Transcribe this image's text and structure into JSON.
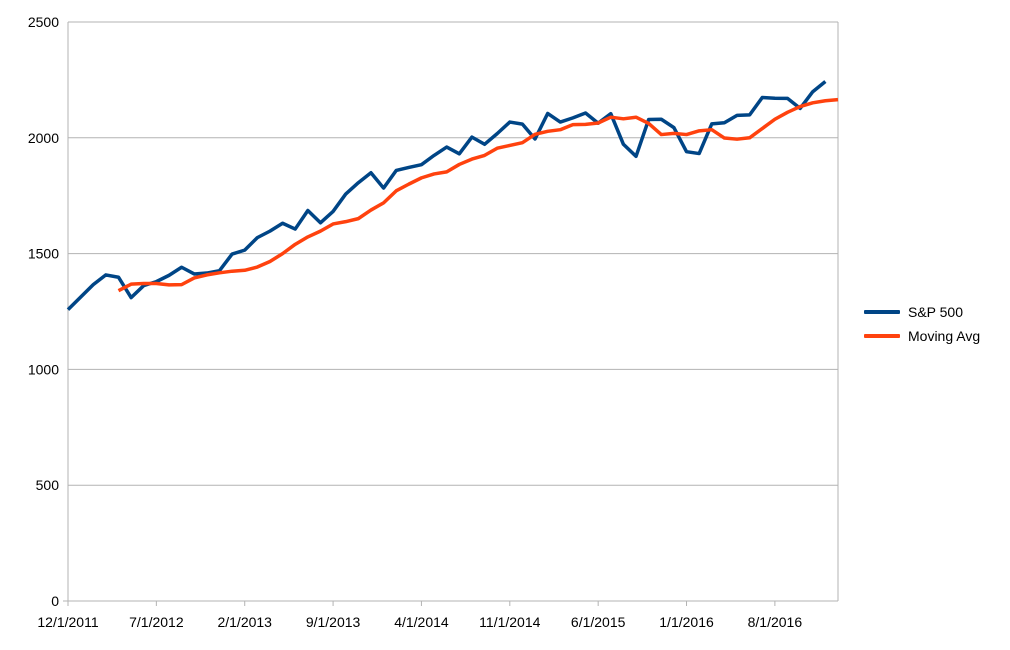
{
  "chart_data": {
    "type": "line",
    "title": "",
    "xlabel": "",
    "ylabel": "",
    "ylim": [
      0,
      2500
    ],
    "yticks": [
      0,
      500,
      1000,
      1500,
      2000,
      2500
    ],
    "yticklabels": [
      "0",
      "500",
      "1000",
      "1500",
      "2000",
      "2500"
    ],
    "xticklabels": [
      "12/1/2011",
      "7/1/2012",
      "2/1/2013",
      "9/1/2013",
      "4/1/2014",
      "11/1/2014",
      "6/1/2015",
      "1/1/2016",
      "8/1/2016"
    ],
    "xtick_months": [
      0,
      7,
      14,
      21,
      28,
      35,
      42,
      49,
      56
    ],
    "x_month_range": [
      0,
      61
    ],
    "grid": "horizontal",
    "legend_position": "right",
    "series": [
      {
        "name": "S&P 500",
        "color": "#004586",
        "start_month": 0,
        "values": [
          1258,
          1312,
          1366,
          1408,
          1398,
          1310,
          1362,
          1379,
          1406,
          1441,
          1412,
          1416,
          1426,
          1498,
          1515,
          1569,
          1597,
          1631,
          1606,
          1686,
          1633,
          1682,
          1757,
          1806,
          1849,
          1783,
          1859,
          1872,
          1884,
          1924,
          1960,
          1931,
          2003,
          1972,
          2018,
          2068,
          2059,
          1995,
          2105,
          2068,
          2086,
          2107,
          2063,
          2104,
          1972,
          1920,
          2079,
          2080,
          2044,
          1940,
          1932,
          2060,
          2065,
          2097,
          2099,
          2174,
          2171,
          2170,
          2127,
          2199,
          2243
        ]
      },
      {
        "name": "Moving Avg",
        "color": "#ff420e",
        "start_month": 4,
        "values": [
          1340,
          1368,
          1371,
          1371,
          1365,
          1366,
          1395,
          1408,
          1417,
          1424,
          1428,
          1442,
          1466,
          1500,
          1540,
          1572,
          1597,
          1628,
          1638,
          1651,
          1688,
          1719,
          1771,
          1800,
          1827,
          1844,
          1853,
          1885,
          1908,
          1924,
          1955,
          1967,
          1979,
          2015,
          2028,
          2035,
          2057,
          2058,
          2064,
          2089,
          2082,
          2089,
          2062,
          2014,
          2019,
          2014,
          2030,
          2035,
          1999,
          1994,
          2000,
          2040,
          2080,
          2110,
          2135,
          2151,
          2160,
          2165
        ]
      }
    ]
  }
}
